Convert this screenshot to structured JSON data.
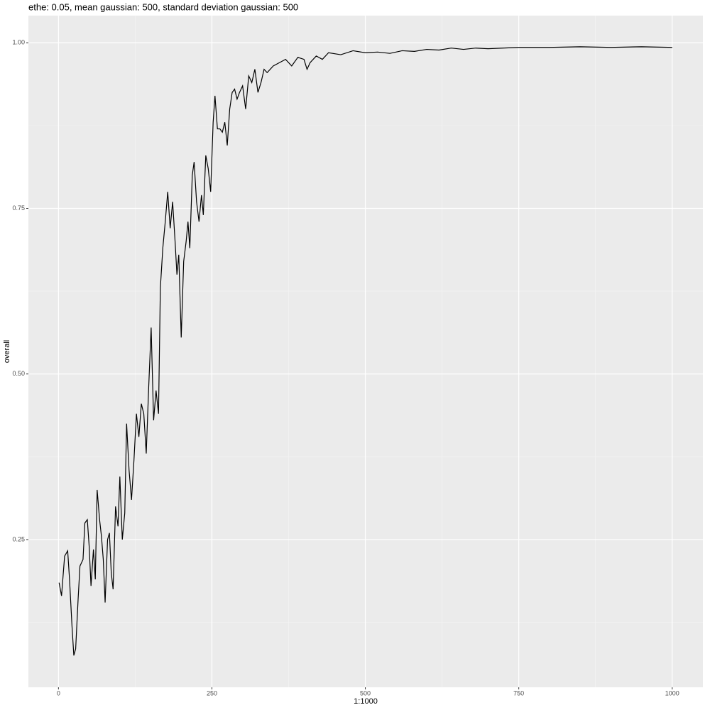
{
  "chart_data": {
    "type": "line",
    "title": "ethe: 0.05, mean gaussian: 500, standard deviation gaussian: 500",
    "x_label": "1:1000",
    "y_label": "overall",
    "xlim": [
      -49,
      1050
    ],
    "ylim": [
      0.027,
      1.041
    ],
    "xticks": [
      0,
      250,
      500,
      750,
      1000
    ],
    "yticks": [
      0.25,
      {
        "value": 0.5,
        "label": "0.50"
      },
      0.75,
      {
        "value": 1.0,
        "label": "1.00"
      }
    ],
    "x_minor_grid": [
      125,
      375,
      625,
      875
    ],
    "y_minor_grid": [
      0.125,
      0.375,
      0.625,
      0.875
    ],
    "grid": true,
    "x": [
      1,
      5,
      10,
      15,
      18,
      22,
      25,
      28,
      32,
      35,
      40,
      43,
      47,
      50,
      53,
      57,
      60,
      63,
      67,
      70,
      73,
      76,
      80,
      83,
      86,
      89,
      93,
      97,
      100,
      104,
      108,
      111,
      115,
      119,
      123,
      127,
      131,
      135,
      139,
      143,
      147,
      151,
      155,
      159,
      163,
      166,
      170,
      174,
      178,
      182,
      186,
      190,
      193,
      196,
      200,
      204,
      208,
      211,
      214,
      218,
      221,
      225,
      229,
      233,
      236,
      240,
      244,
      248,
      252,
      255,
      259,
      263,
      267,
      271,
      275,
      279,
      283,
      287,
      291,
      295,
      300,
      305,
      310,
      315,
      320,
      325,
      330,
      335,
      340,
      350,
      360,
      370,
      380,
      390,
      400,
      405,
      410,
      420,
      430,
      440,
      460,
      480,
      500,
      520,
      540,
      560,
      580,
      600,
      620,
      640,
      660,
      680,
      700,
      750,
      800,
      850,
      900,
      950,
      1000
    ],
    "series": [
      {
        "name": "overall",
        "color": "#000000",
        "values": [
          0.185,
          0.165,
          0.225,
          0.233,
          0.19,
          0.12,
          0.075,
          0.085,
          0.16,
          0.21,
          0.22,
          0.275,
          0.28,
          0.24,
          0.18,
          0.235,
          0.19,
          0.325,
          0.28,
          0.255,
          0.22,
          0.155,
          0.25,
          0.26,
          0.2,
          0.175,
          0.3,
          0.27,
          0.345,
          0.25,
          0.29,
          0.425,
          0.355,
          0.31,
          0.37,
          0.44,
          0.405,
          0.455,
          0.44,
          0.38,
          0.48,
          0.57,
          0.43,
          0.475,
          0.44,
          0.63,
          0.69,
          0.73,
          0.775,
          0.72,
          0.76,
          0.7,
          0.65,
          0.68,
          0.555,
          0.67,
          0.7,
          0.73,
          0.69,
          0.8,
          0.82,
          0.76,
          0.73,
          0.77,
          0.74,
          0.83,
          0.81,
          0.775,
          0.88,
          0.92,
          0.87,
          0.87,
          0.865,
          0.88,
          0.845,
          0.9,
          0.925,
          0.93,
          0.915,
          0.925,
          0.935,
          0.9,
          0.95,
          0.94,
          0.96,
          0.925,
          0.94,
          0.96,
          0.955,
          0.965,
          0.97,
          0.975,
          0.965,
          0.978,
          0.975,
          0.96,
          0.97,
          0.98,
          0.975,
          0.985,
          0.982,
          0.988,
          0.985,
          0.986,
          0.984,
          0.988,
          0.987,
          0.99,
          0.989,
          0.992,
          0.99,
          0.992,
          0.991,
          0.993,
          0.993,
          0.994,
          0.993,
          0.994,
          0.993
        ]
      }
    ]
  }
}
